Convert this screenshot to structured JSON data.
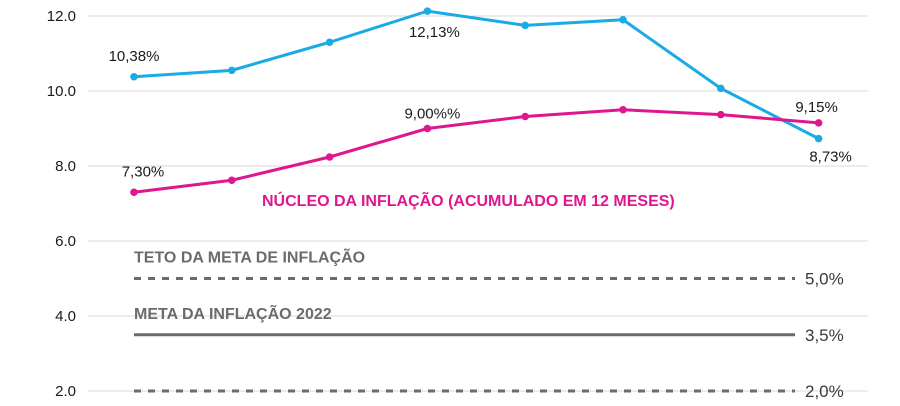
{
  "chart_data": {
    "type": "line",
    "ylim": [
      2.0,
      12.0
    ],
    "yticks": [
      "2.0",
      "4.0",
      "6.0",
      "8.0",
      "10.0",
      "12.0"
    ],
    "grid": true,
    "series": [
      {
        "name": "",
        "color": "#1aabe6",
        "values": [
          10.38,
          10.55,
          11.3,
          12.13,
          11.75,
          11.9,
          10.07,
          8.73
        ]
      },
      {
        "name": "NÚCLEO DA INFLAÇÃO (ACUMULADO EM 12 MESES)",
        "color": "#e0168e",
        "values": [
          7.3,
          7.62,
          8.24,
          9.0,
          9.32,
          9.5,
          9.37,
          9.15
        ]
      }
    ],
    "data_labels": [
      {
        "series": 0,
        "index": 0,
        "text": "10,38%"
      },
      {
        "series": 0,
        "index": 3,
        "text": "12,13%"
      },
      {
        "series": 0,
        "index": 7,
        "text": "8,73%"
      },
      {
        "series": 1,
        "index": 0,
        "text": "7,30%"
      },
      {
        "series": 1,
        "index": 3,
        "text": "9,00%%"
      },
      {
        "series": 1,
        "index": 7,
        "text": "9,15%"
      }
    ],
    "reference_lines": [
      {
        "label": "TETO DA META DE INFLAÇÃO",
        "value": 5.0,
        "value_label": "5,0%",
        "style": "dashed",
        "color": "#6b6b6b"
      },
      {
        "label": "META DA INFLAÇÃO 2022",
        "value": 3.5,
        "value_label": "3,5%",
        "style": "solid",
        "color": "#6b6b6b"
      },
      {
        "label": "",
        "value": 2.0,
        "value_label": "2,0%",
        "style": "dashed",
        "color": "#6b6b6b"
      }
    ]
  }
}
